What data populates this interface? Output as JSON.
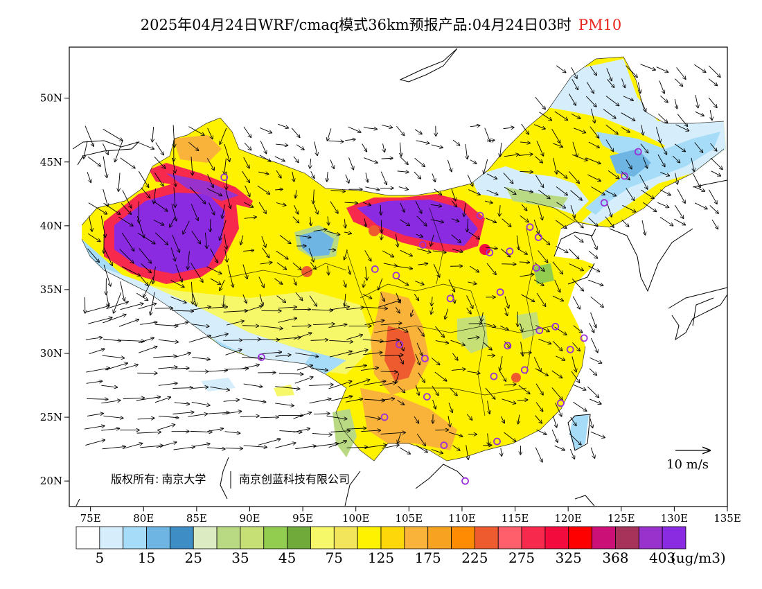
{
  "title": {
    "main": "2025年04月24日WRF/cmaq模式36km预报产品:04月24日03时",
    "variable": "PM10"
  },
  "copyright": {
    "prefix": "版权所有:",
    "org1": "南京大学",
    "org2": "南京创蓝科技有限公司"
  },
  "wind_legend": "10 m/s",
  "unit": "(ug/m3)",
  "map": {
    "lon_ticks": [
      "75E",
      "80E",
      "85E",
      "90E",
      "95E",
      "100E",
      "105E",
      "110E",
      "115E",
      "120E",
      "125E",
      "130E",
      "135E"
    ],
    "lat_ticks": [
      "50N",
      "45N",
      "40N",
      "35N",
      "30N",
      "25N",
      "20N"
    ],
    "lon_range": [
      73,
      135
    ],
    "lat_range": [
      18,
      54
    ]
  },
  "colorbar": {
    "colors": [
      "#ffffff",
      "#d6eefc",
      "#a6dcf7",
      "#6fb5e3",
      "#3f8dc5",
      "#dcebc1",
      "#b9da82",
      "#c7e076",
      "#92cd4f",
      "#6faa3a",
      "#f6f86a",
      "#f3e55b",
      "#fff200",
      "#fed70a",
      "#f9b33b",
      "#f7a220",
      "#ff8b02",
      "#ee5b2f",
      "#ff5f6a",
      "#f72a4e",
      "#f30b3e",
      "#ff0000",
      "#cb1177",
      "#a8335a",
      "#9932cc",
      "#8a2be2"
    ],
    "labels": [
      "5",
      "15",
      "25",
      "35",
      "45",
      "75",
      "125",
      "175",
      "225",
      "275",
      "325",
      "368",
      "403"
    ]
  },
  "stations": [
    [
      87.6,
      43.8
    ],
    [
      91.1,
      29.7
    ],
    [
      101.8,
      36.6
    ],
    [
      103.8,
      36.1
    ],
    [
      106.3,
      38.5
    ],
    [
      111.7,
      40.8
    ],
    [
      112.6,
      37.9
    ],
    [
      114.5,
      38.0
    ],
    [
      116.4,
      39.9
    ],
    [
      117.2,
      39.1
    ],
    [
      126.6,
      45.8
    ],
    [
      125.3,
      43.9
    ],
    [
      123.4,
      41.8
    ],
    [
      117.0,
      36.7
    ],
    [
      113.6,
      34.8
    ],
    [
      108.9,
      34.3
    ],
    [
      117.3,
      31.8
    ],
    [
      118.8,
      32.1
    ],
    [
      120.2,
      30.3
    ],
    [
      121.5,
      31.2
    ],
    [
      114.3,
      30.6
    ],
    [
      104.1,
      30.7
    ],
    [
      106.5,
      29.6
    ],
    [
      113.0,
      28.2
    ],
    [
      115.9,
      28.7
    ],
    [
      106.7,
      26.6
    ],
    [
      102.7,
      25.0
    ],
    [
      108.3,
      22.8
    ],
    [
      113.3,
      23.1
    ],
    [
      110.3,
      20.0
    ],
    [
      119.3,
      26.1
    ]
  ]
}
